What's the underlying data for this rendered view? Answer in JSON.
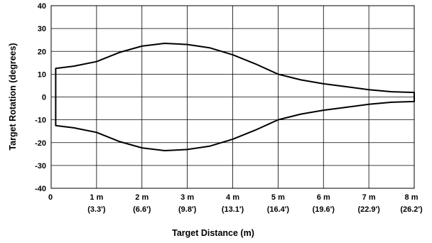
{
  "chart_data": {
    "type": "line",
    "title": "",
    "xlabel": "Target Distance (m)",
    "ylabel": "Target Rotation (degrees)",
    "xlim": [
      0,
      8
    ],
    "ylim": [
      -40,
      40
    ],
    "grid": true,
    "x_ticks": [
      {
        "value": 0,
        "label": "0",
        "sublabel": ""
      },
      {
        "value": 1,
        "label": "1 m",
        "sublabel": "(3.3')"
      },
      {
        "value": 2,
        "label": "2 m",
        "sublabel": "(6.6')"
      },
      {
        "value": 3,
        "label": "3 m",
        "sublabel": "(9.8')"
      },
      {
        "value": 4,
        "label": "4 m",
        "sublabel": "(13.1')"
      },
      {
        "value": 5,
        "label": "5 m",
        "sublabel": "(16.4')"
      },
      {
        "value": 6,
        "label": "6 m",
        "sublabel": "(19.6')"
      },
      {
        "value": 7,
        "label": "7 m",
        "sublabel": "(22.9')"
      },
      {
        "value": 8,
        "label": "8 m",
        "sublabel": "(26.2')"
      }
    ],
    "y_ticks": [
      {
        "value": 40,
        "label": "40"
      },
      {
        "value": 30,
        "label": "30"
      },
      {
        "value": 20,
        "label": "20"
      },
      {
        "value": 10,
        "label": "10"
      },
      {
        "value": 0,
        "label": "0"
      },
      {
        "value": -10,
        "label": "-10"
      },
      {
        "value": -20,
        "label": "-20"
      },
      {
        "value": -30,
        "label": "-30"
      },
      {
        "value": -40,
        "label": "-40"
      }
    ],
    "series": [
      {
        "color": "#000000",
        "x": [
          0.1,
          0.1,
          0.5,
          1.0,
          1.5,
          2.0,
          2.5,
          3.0,
          3.5,
          4.0,
          4.5,
          5.0,
          5.5,
          6.0,
          6.5,
          7.0,
          7.5,
          8.0,
          8.0,
          7.5,
          7.0,
          6.5,
          6.0,
          5.5,
          5.0,
          4.5,
          4.0,
          3.5,
          3.0,
          2.5,
          2.0,
          1.5,
          1.0,
          0.5,
          0.1,
          0.1
        ],
        "y": [
          -12.5,
          12.5,
          13.5,
          15.5,
          19.5,
          22.3,
          23.5,
          23.0,
          21.5,
          18.5,
          14.5,
          10.0,
          7.5,
          5.8,
          4.5,
          3.2,
          2.3,
          2.0,
          -2.0,
          -2.3,
          -3.2,
          -4.5,
          -5.8,
          -7.5,
          -10.0,
          -14.5,
          -18.5,
          -21.5,
          -23.0,
          -23.5,
          -22.3,
          -19.5,
          -15.5,
          -13.5,
          -12.5,
          -12.5
        ]
      }
    ]
  }
}
